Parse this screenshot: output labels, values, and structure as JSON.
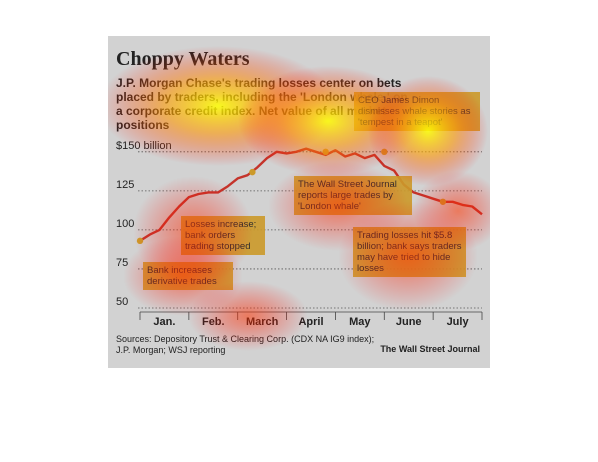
{
  "title": "Choppy Waters",
  "subtitle": "J.P. Morgan Chase's trading losses center on bets placed by traders, including the 'London whale,' on a corporate credit index. Net value of all market positions",
  "sources": "Sources: Depository Trust & Clearing Corp. (CDX NA IG9 index); J.P. Morgan; WSJ reporting",
  "publisher": "The Wall Street Journal",
  "colors": {
    "line": "#c4342b",
    "callout": "#cc9a2a",
    "background": "#d2d2d2",
    "heat_core": "#ffff00",
    "heat_edge": "#ff0000"
  },
  "chart_data": {
    "type": "line",
    "ylabel": "$150 billion",
    "ylim": [
      50,
      155
    ],
    "y_ticks": [
      "$150 billion",
      "125",
      "100",
      "75",
      "50"
    ],
    "y_tick_values": [
      150,
      125,
      100,
      75,
      50
    ],
    "x_ticks": [
      "Jan.",
      "Feb.",
      "March",
      "April",
      "May",
      "June",
      "July"
    ],
    "x_months": [
      0.5,
      1.5,
      2.5,
      3.5,
      4.5,
      5.5,
      6.5
    ],
    "grid": "dotted",
    "series": [
      {
        "x": [
          0.0,
          0.2,
          0.4,
          0.6,
          0.8,
          1.0,
          1.2,
          1.4,
          1.6,
          1.8,
          2.0,
          2.2,
          2.4,
          2.6,
          2.8,
          3.0,
          3.2,
          3.4,
          3.6,
          3.8,
          4.0,
          4.2,
          4.4,
          4.6,
          4.8,
          5.0,
          5.2,
          5.4,
          5.6,
          5.8,
          6.0,
          6.2,
          6.4,
          6.6,
          6.8,
          7.0
        ],
        "values": [
          93,
          97,
          100,
          108,
          115,
          121,
          123,
          124,
          124,
          128,
          133,
          135,
          140,
          146,
          150,
          149,
          150,
          152,
          150,
          148,
          151,
          147,
          149,
          146,
          148,
          141,
          138,
          129,
          124,
          122,
          120,
          118,
          118,
          116,
          115,
          110
        ]
      }
    ],
    "annotations": [
      {
        "text": "Bank increases derivative trades",
        "x": 0.0,
        "y": 93
      },
      {
        "text": "Losses increase; bank orders trading stopped",
        "x": 2.3,
        "y": 137
      },
      {
        "text": "The Wall Street Journal reports large trades by 'London whale'",
        "x": 3.8,
        "y": 150
      },
      {
        "text": "CEO James Dimon dismisses whale stories as 'tempest in a teapot'",
        "x": 5.0,
        "y": 150
      },
      {
        "text": "Trading losses hit $5.8 billion; bank says traders may have tried to hide losses",
        "x": 6.2,
        "y": 118
      }
    ]
  }
}
